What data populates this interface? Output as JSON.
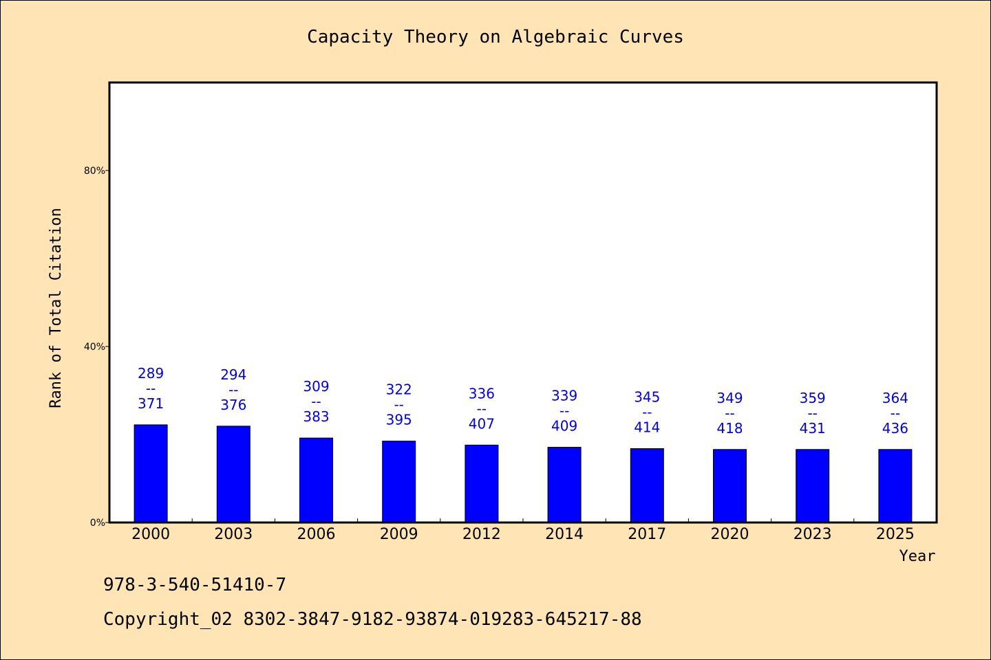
{
  "chart_data": {
    "type": "bar",
    "title": "Capacity Theory on Algebraic Curves",
    "xlabel": "Year",
    "ylabel": "Rank of Total Citation",
    "categories": [
      "2000",
      "2003",
      "2006",
      "2009",
      "2012",
      "2014",
      "2017",
      "2020",
      "2023",
      "2025"
    ],
    "values": [
      22.2,
      21.9,
      19.2,
      18.5,
      17.6,
      17.1,
      16.8,
      16.6,
      16.6,
      16.6
    ],
    "value_unit": "%",
    "labels_top": [
      "289",
      "294",
      "309",
      "322",
      "336",
      "339",
      "345",
      "349",
      "359",
      "364"
    ],
    "labels_bottom": [
      "371",
      "376",
      "383",
      "395",
      "407",
      "409",
      "414",
      "418",
      "431",
      "436"
    ],
    "label_separator": "--",
    "ylim": [
      0,
      100
    ],
    "yticks": [
      0,
      40,
      80
    ],
    "ytick_labels": [
      "0%",
      "40%",
      "80%"
    ],
    "grid": false,
    "colors": {
      "bar": "#0000ff",
      "label": "#0000e0",
      "background": "#ffe4b5",
      "plot_bg": "#ffffff"
    }
  },
  "footer": {
    "isbn": "978-3-540-51410-7",
    "copyright": "Copyright_02 8302-3847-9182-93874-019283-645217-88"
  }
}
